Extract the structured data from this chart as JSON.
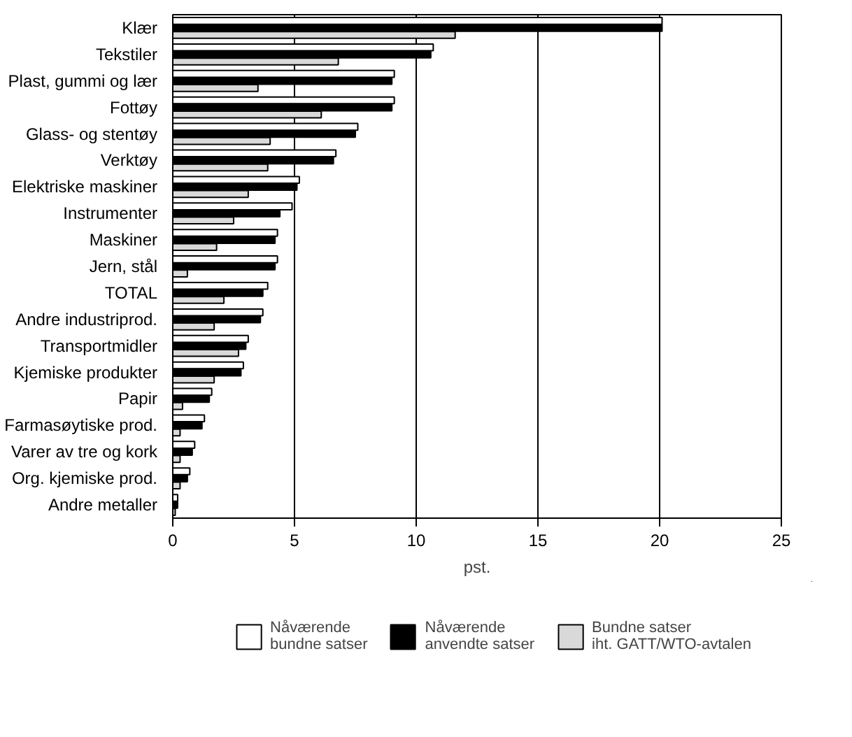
{
  "chart_data": {
    "type": "bar",
    "orientation": "horizontal",
    "xlabel": "pst.",
    "xlim": [
      0,
      25
    ],
    "xticks": [
      0,
      5,
      10,
      15,
      20,
      25
    ],
    "grid": "x",
    "legend": "bottom",
    "categories": [
      "Klær",
      "Tekstiler",
      "Plast, gummi og lær",
      "Fottøy",
      "Glass- og stentøy",
      "Verktøy",
      "Elektriske maskiner",
      "Instrumenter",
      "Maskiner",
      "Jern, stål",
      "TOTAL",
      "Andre industriprod.",
      "Transportmidler",
      "Kjemiske produkter",
      "Papir",
      "Farmasøytiske prod.",
      "Varer av tre og kork",
      "Org. kjemiske prod.",
      "Andre metaller"
    ],
    "series": [
      {
        "name": "Nåværende\nbundne satser",
        "color": "#ffffff",
        "values": [
          20.1,
          10.7,
          9.1,
          9.1,
          7.6,
          6.7,
          5.2,
          4.9,
          4.3,
          4.3,
          3.9,
          3.7,
          3.1,
          2.9,
          1.6,
          1.3,
          0.9,
          0.7,
          0.2
        ]
      },
      {
        "name": "Nåværende\nanvendte satser",
        "color": "#000000",
        "values": [
          20.1,
          10.6,
          9.0,
          9.0,
          7.5,
          6.6,
          5.1,
          4.4,
          4.2,
          4.2,
          3.7,
          3.6,
          3.0,
          2.8,
          1.5,
          1.2,
          0.8,
          0.6,
          0.2
        ]
      },
      {
        "name": "Bundne satser\niht. GATT/WTO-avtalen",
        "color": "#d9d9d9",
        "values": [
          11.6,
          6.8,
          3.5,
          6.1,
          4.0,
          3.9,
          3.1,
          2.5,
          1.8,
          0.6,
          2.1,
          1.7,
          2.7,
          1.7,
          0.4,
          0.3,
          0.3,
          0.3,
          0.1
        ]
      }
    ]
  }
}
